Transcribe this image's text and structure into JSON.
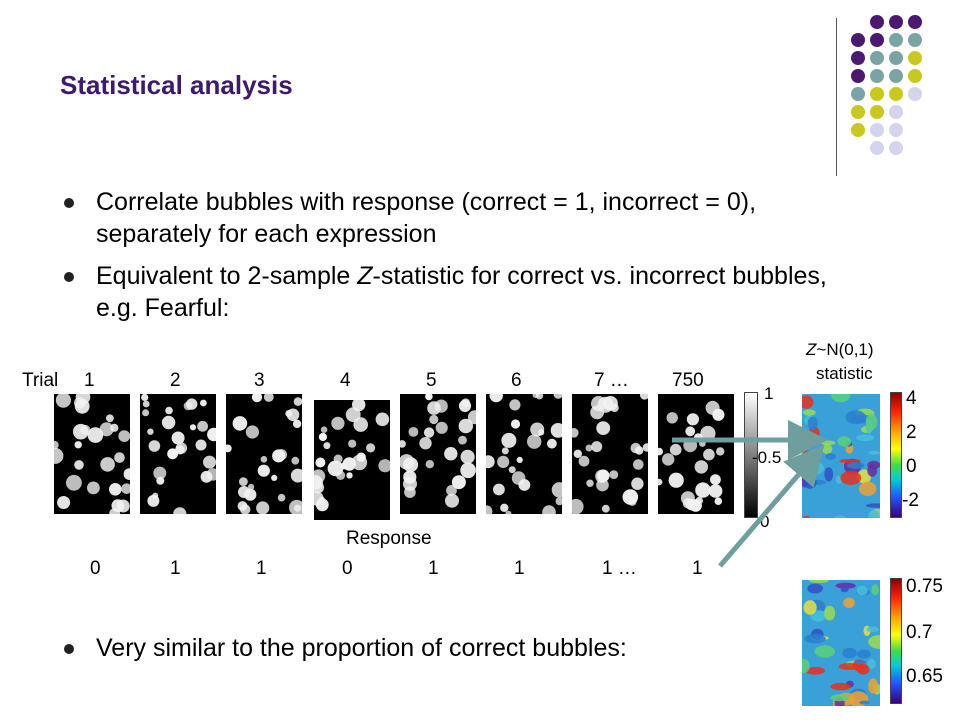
{
  "slide": {
    "title": "Statistical analysis",
    "bullets": [
      "Correlate bubbles with response (correct = 1, incorrect = 0), separately for each expression",
      "Equivalent to 2-sample Z-statistic for correct vs. incorrect bubbles, e.g. Fearful:"
    ],
    "bottom_bullet": "Very similar to the proportion of correct bubbles:"
  },
  "figure": {
    "trial_label": "Trial",
    "trials": [
      "1",
      "2",
      "3",
      "4",
      "5",
      "6",
      "7 …",
      "750"
    ],
    "response_label": "Response",
    "responses": [
      "0",
      "1",
      "1",
      "0",
      "1",
      "1",
      "1 …",
      "1"
    ],
    "gray_scale_ticks": [
      "1",
      "0.5",
      "0"
    ],
    "z_label_italic": "Z",
    "z_label_rest": "~N(0,1)",
    "z_label_line2": "statistic",
    "z_ticks": [
      "4",
      "2",
      "0",
      "-2"
    ],
    "p_ticks": [
      "0.75",
      "0.7",
      "0.65"
    ]
  },
  "colors": {
    "title": "#3d1a6e",
    "dot_purple": "#4b1a70",
    "dot_teal": "#7aa4a4",
    "dot_yellow": "#c8c81e",
    "dot_lavender": "#d4d4ec",
    "arrow": "#6f9e9e"
  }
}
